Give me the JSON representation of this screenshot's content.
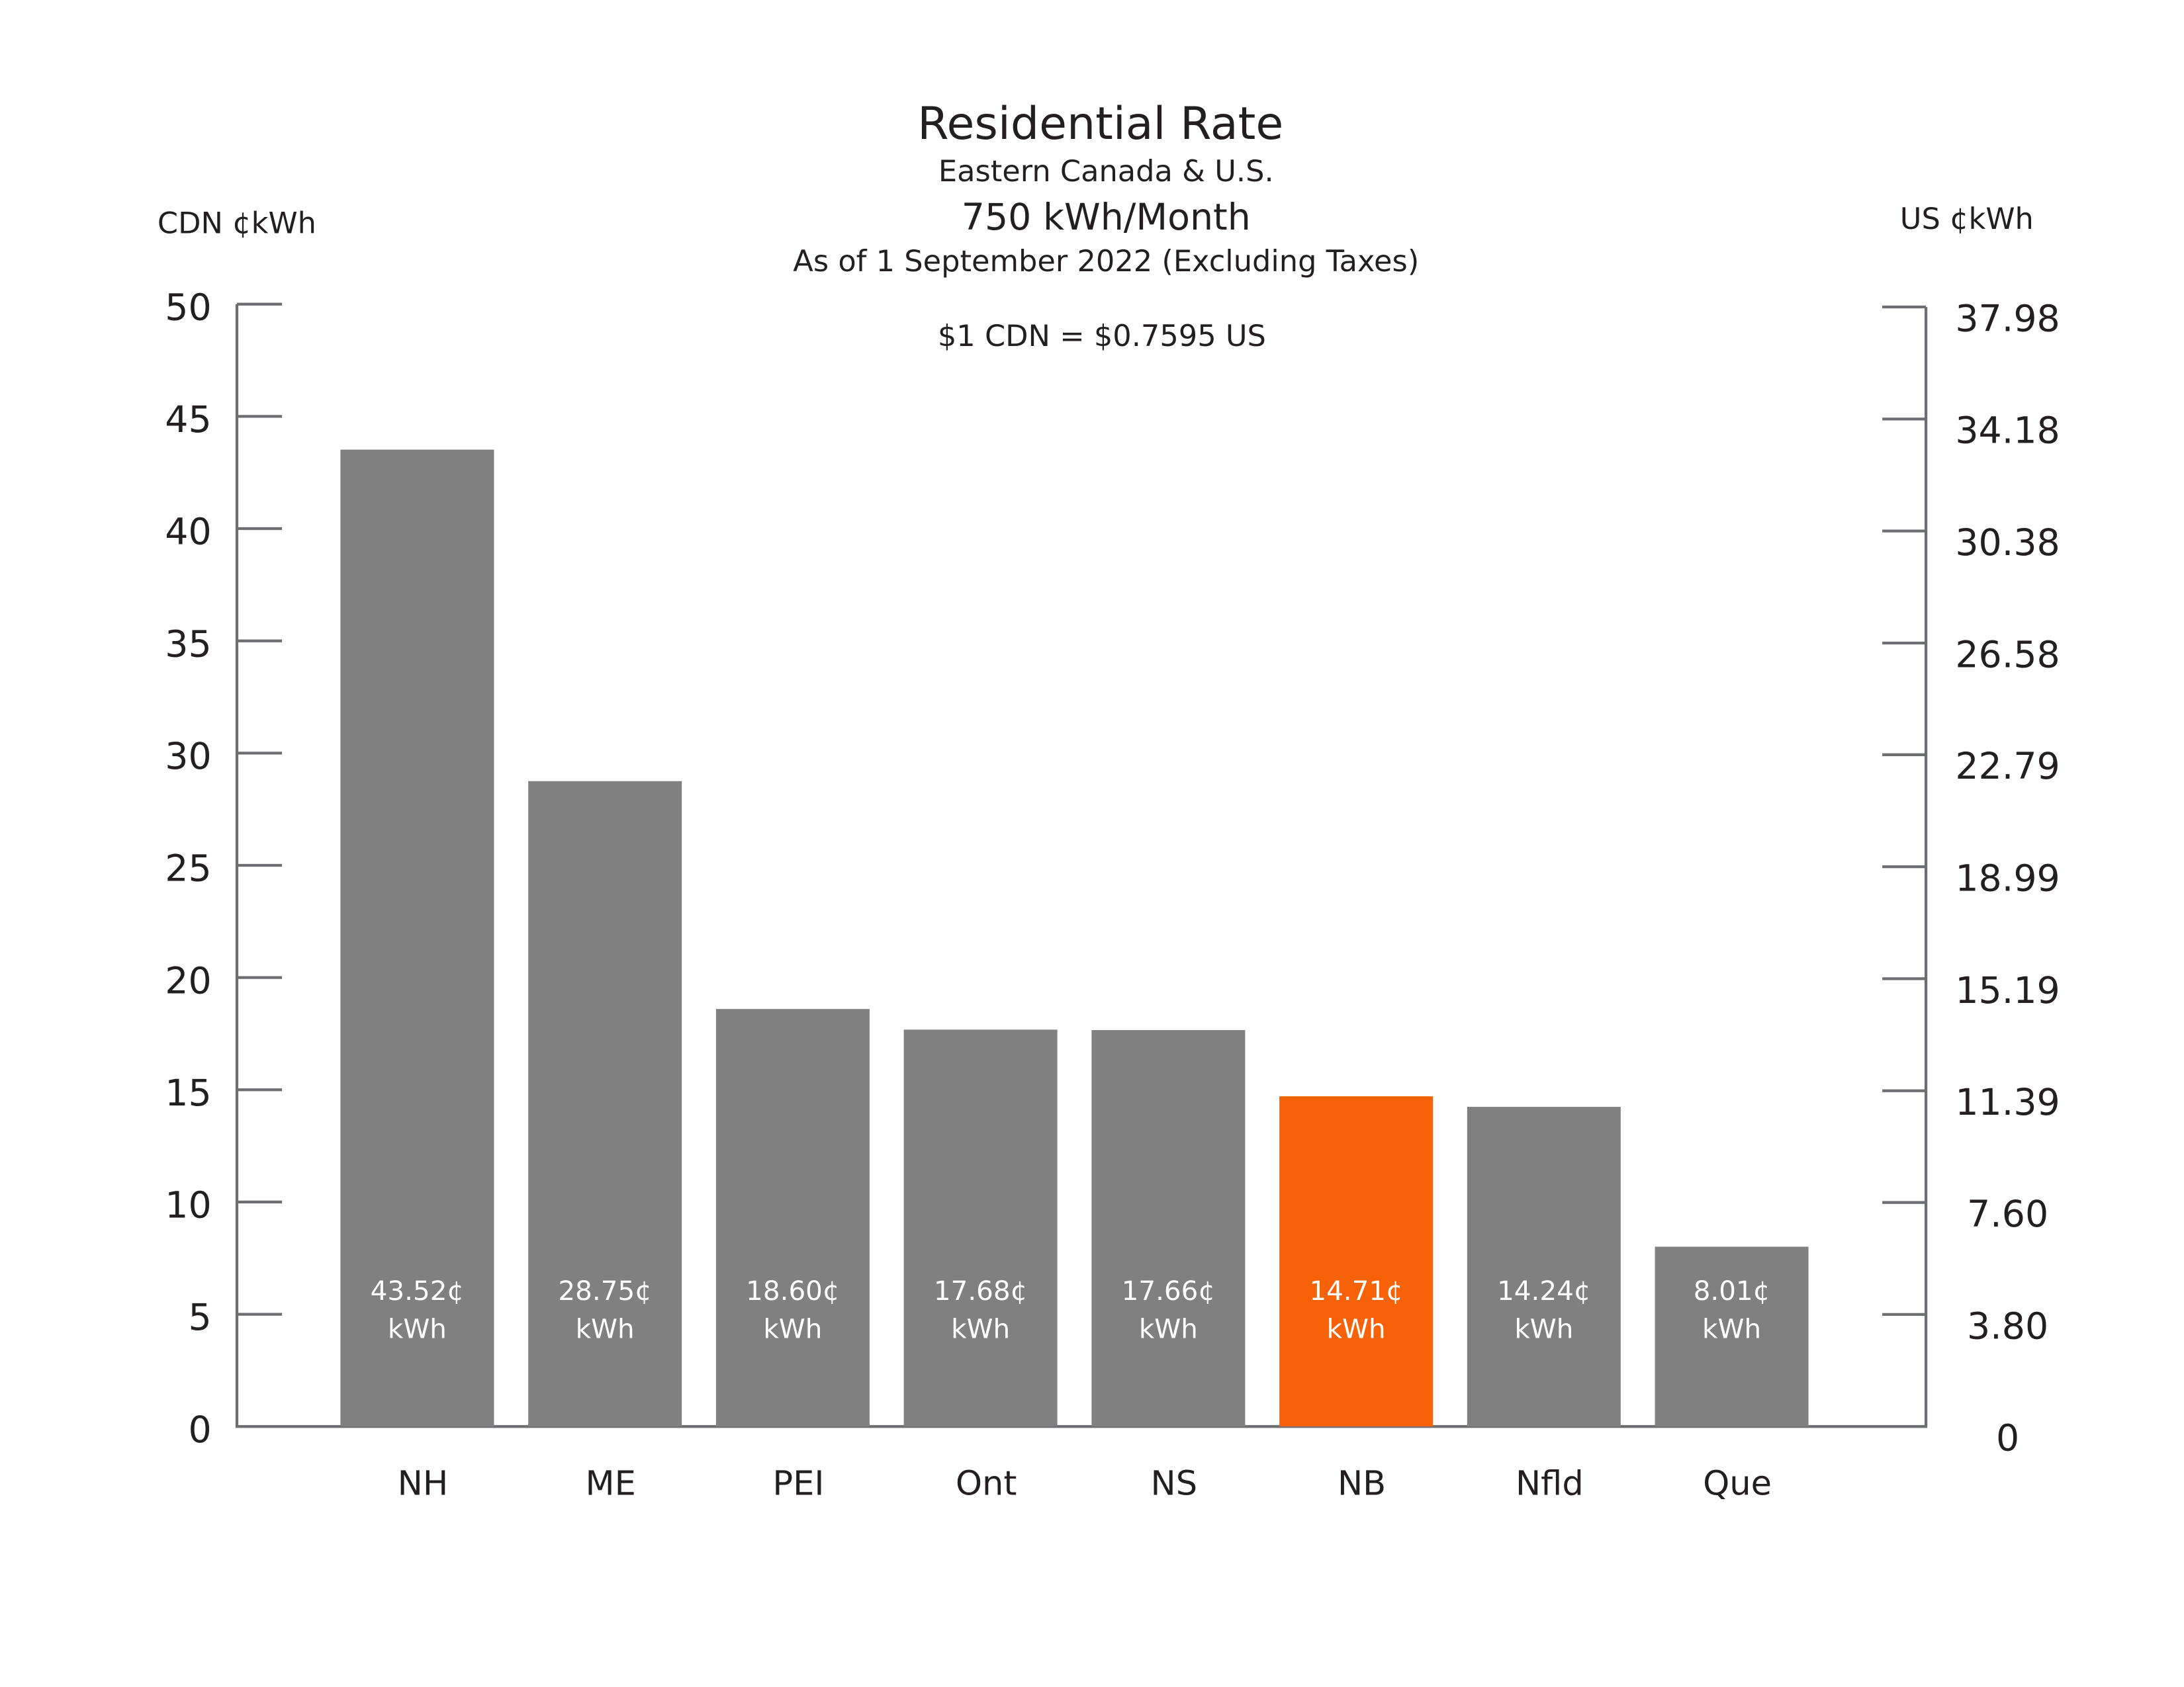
{
  "chart_data": {
    "type": "bar",
    "title": "Residential Rate",
    "subtitles": [
      "Eastern Canada & U.S.",
      "750 kWh/Month",
      "As of 1 September 2022 (Excluding Taxes)"
    ],
    "annotation": "$1 CDN = $0.7595 US",
    "y_label": "CDN ¢kWh",
    "y2_label": "US ¢kWh",
    "categories": [
      "NH",
      "ME",
      "PEI",
      "Ont",
      "NS",
      "NB",
      "Nfld",
      "Que"
    ],
    "values": [
      43.52,
      28.75,
      18.6,
      17.68,
      17.66,
      14.71,
      14.24,
      8.01
    ],
    "value_labels": [
      "43.52¢ kWh",
      "28.75¢ kWh",
      "18.60¢ kWh",
      "17.68¢ kWh",
      "17.66¢ kWh",
      "14.71¢ kWh",
      "14.24¢ kWh",
      "8.01¢ kWh"
    ],
    "colors": [
      "#808080",
      "#808080",
      "#808080",
      "#808080",
      "#808080",
      "#f76208",
      "#808080",
      "#808080"
    ],
    "ylim": [
      0,
      50
    ],
    "yticks": [
      0,
      5,
      10,
      15,
      20,
      25,
      30,
      35,
      40,
      45,
      50
    ],
    "y2lim": [
      0,
      37.98
    ],
    "y2ticks": [
      0,
      {
        "value": 3.8,
        "label": "3.80"
      },
      {
        "value": 7.6,
        "label": "7.60"
      },
      11.39,
      15.19,
      18.99,
      22.79,
      26.58,
      30.38,
      34.18,
      37.98
    ],
    "grid": false
  }
}
